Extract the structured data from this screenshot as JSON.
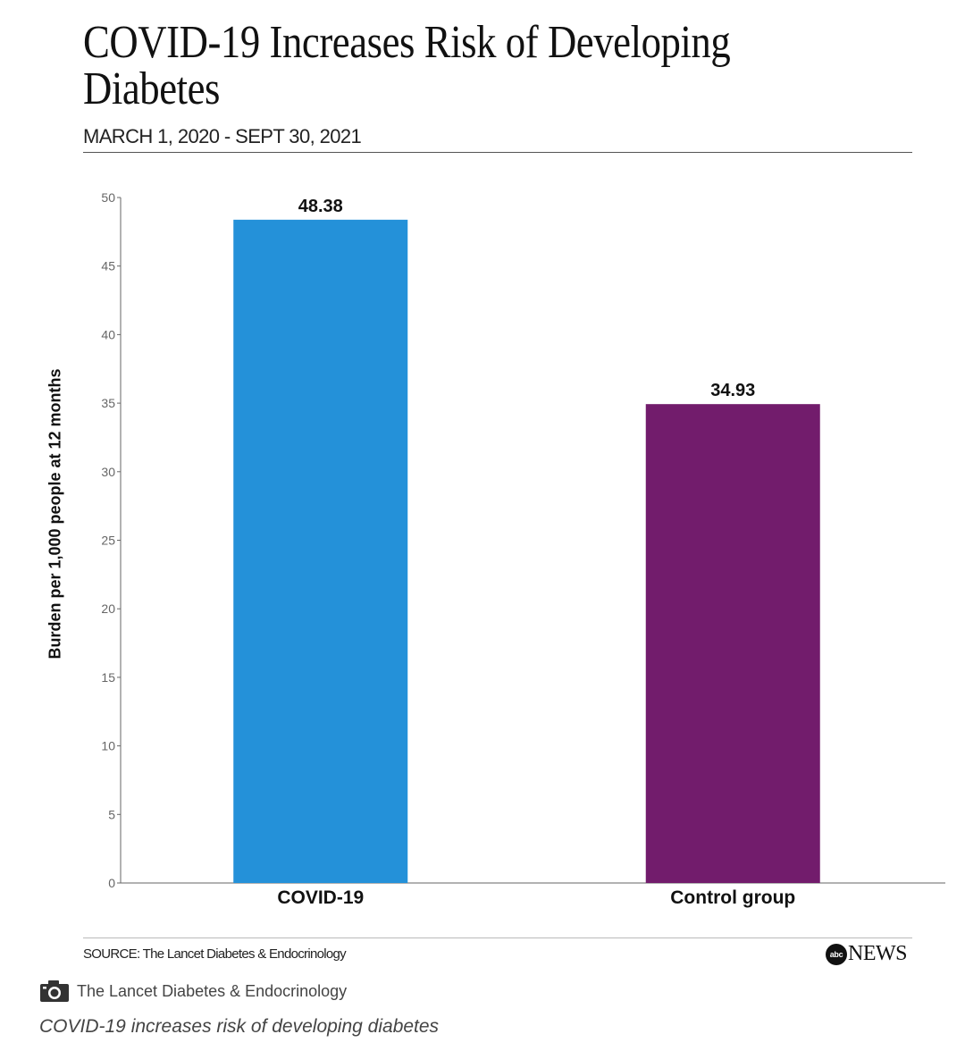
{
  "header": {
    "title": "COVID-19 Increases Risk of Developing Diabetes",
    "subtitle": "MARCH 1, 2020 - SEPT 30, 2021"
  },
  "chart_data": {
    "type": "bar",
    "categories": [
      "COVID-19",
      "Control group"
    ],
    "values": [
      48.38,
      34.93
    ],
    "data_labels": [
      "48.38",
      "34.93"
    ],
    "colors": [
      "#2491d9",
      "#721c6c"
    ],
    "title": "COVID-19 Increases Risk of Developing Diabetes",
    "subtitle": "MARCH 1, 2020 - SEPT 30, 2021",
    "xlabel": "",
    "ylabel": "Burden per 1,000 people at 12 months",
    "ylim": [
      0,
      50
    ],
    "yticks": [
      0,
      5,
      10,
      15,
      20,
      25,
      30,
      35,
      40,
      45,
      50
    ],
    "grid": false,
    "legend": "none"
  },
  "footer": {
    "source": "SOURCE: The Lancet Diabetes & Endocrinology",
    "logo_disc": "abc",
    "logo_word": "NEWS"
  },
  "credit": {
    "icon": "camera-icon",
    "text": "The Lancet Diabetes & Endocrinology"
  },
  "caption": "COVID-19 increases risk of developing diabetes"
}
